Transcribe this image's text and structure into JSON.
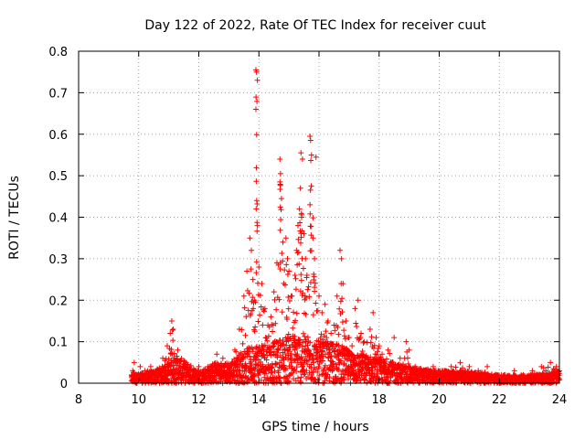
{
  "chart_data": {
    "type": "scatter",
    "title": "Day 122 of 2022, Rate Of TEC Index for receiver cuut",
    "xlabel": "GPS time / hours",
    "ylabel": "ROTI / TECUs",
    "xlim": [
      8,
      24
    ],
    "ylim": [
      0,
      0.8
    ],
    "xticks": [
      8,
      10,
      12,
      14,
      16,
      18,
      20,
      22,
      24
    ],
    "yticks": [
      0,
      0.1,
      0.2,
      0.3,
      0.4,
      0.5,
      0.6,
      0.7,
      0.8
    ],
    "xtick_labels": [
      "8",
      "10",
      "12",
      "14",
      "16",
      "18",
      "20",
      "22",
      "24"
    ],
    "ytick_labels": [
      "0",
      "0.1",
      "0.2",
      "0.3",
      "0.4",
      "0.5",
      "0.6",
      "0.7",
      "0.8"
    ],
    "grid": true,
    "marker": "+",
    "color": "#ff0000",
    "series": [
      {
        "points": [
          [
            9.8,
            0.03
          ],
          [
            9.85,
            0.05
          ],
          [
            9.95,
            0.02
          ],
          [
            10.05,
            0.04
          ],
          [
            10.2,
            0.03
          ],
          [
            10.4,
            0.04
          ],
          [
            10.6,
            0.03
          ],
          [
            10.8,
            0.06
          ],
          [
            10.95,
            0.09
          ],
          [
            11.05,
            0.12
          ],
          [
            11.1,
            0.15
          ],
          [
            11.15,
            0.13
          ],
          [
            11.3,
            0.08
          ],
          [
            11.5,
            0.04
          ],
          [
            11.8,
            0.03
          ],
          [
            12.0,
            0.04
          ],
          [
            12.3,
            0.03
          ],
          [
            12.6,
            0.07
          ],
          [
            12.8,
            0.06
          ],
          [
            13.0,
            0.04
          ],
          [
            13.2,
            0.08
          ],
          [
            13.35,
            0.13
          ],
          [
            13.5,
            0.21
          ],
          [
            13.6,
            0.27
          ],
          [
            13.7,
            0.35
          ],
          [
            13.75,
            0.32
          ],
          [
            13.8,
            0.25
          ],
          [
            13.85,
            0.2
          ],
          [
            13.9,
            0.755
          ],
          [
            13.92,
            0.75
          ],
          [
            13.95,
            0.73
          ],
          [
            13.9,
            0.66
          ],
          [
            13.95,
            0.38
          ],
          [
            14.0,
            0.28
          ],
          [
            14.1,
            0.24
          ],
          [
            14.2,
            0.18
          ],
          [
            14.3,
            0.14
          ],
          [
            14.4,
            0.16
          ],
          [
            14.5,
            0.22
          ],
          [
            14.6,
            0.29
          ],
          [
            14.7,
            0.54
          ],
          [
            14.72,
            0.505
          ],
          [
            14.7,
            0.485
          ],
          [
            14.75,
            0.445
          ],
          [
            14.8,
            0.34
          ],
          [
            14.9,
            0.35
          ],
          [
            14.95,
            0.3
          ],
          [
            15.0,
            0.27
          ],
          [
            15.1,
            0.21
          ],
          [
            15.2,
            0.26
          ],
          [
            15.25,
            0.32
          ],
          [
            15.3,
            0.38
          ],
          [
            15.35,
            0.42
          ],
          [
            15.4,
            0.555
          ],
          [
            15.45,
            0.54
          ],
          [
            15.38,
            0.47
          ],
          [
            15.42,
            0.4
          ],
          [
            15.5,
            0.36
          ],
          [
            15.55,
            0.3
          ],
          [
            15.6,
            0.26
          ],
          [
            15.7,
            0.595
          ],
          [
            15.72,
            0.585
          ],
          [
            15.75,
            0.55
          ],
          [
            15.7,
            0.43
          ],
          [
            15.9,
            0.545
          ],
          [
            15.8,
            0.35
          ],
          [
            15.85,
            0.3
          ],
          [
            16.0,
            0.21
          ],
          [
            16.1,
            0.17
          ],
          [
            16.2,
            0.19
          ],
          [
            16.3,
            0.15
          ],
          [
            16.4,
            0.12
          ],
          [
            16.5,
            0.14
          ],
          [
            16.6,
            0.21
          ],
          [
            16.7,
            0.32
          ],
          [
            16.75,
            0.3
          ],
          [
            16.8,
            0.24
          ],
          [
            16.9,
            0.15
          ],
          [
            17.0,
            0.11
          ],
          [
            17.1,
            0.09
          ],
          [
            17.2,
            0.18
          ],
          [
            17.3,
            0.2
          ],
          [
            17.4,
            0.12
          ],
          [
            17.5,
            0.1
          ],
          [
            17.7,
            0.13
          ],
          [
            17.8,
            0.17
          ],
          [
            17.9,
            0.11
          ],
          [
            18.0,
            0.09
          ],
          [
            18.1,
            0.07
          ],
          [
            18.3,
            0.08
          ],
          [
            18.5,
            0.11
          ],
          [
            18.7,
            0.06
          ],
          [
            18.9,
            0.1
          ],
          [
            19.0,
            0.08
          ],
          [
            19.2,
            0.04
          ],
          [
            19.5,
            0.03
          ],
          [
            19.8,
            0.04
          ],
          [
            20.1,
            0.03
          ],
          [
            20.4,
            0.04
          ],
          [
            20.7,
            0.05
          ],
          [
            21.0,
            0.04
          ],
          [
            21.3,
            0.03
          ],
          [
            21.6,
            0.04
          ],
          [
            21.9,
            0.02
          ],
          [
            22.2,
            0.02
          ],
          [
            22.5,
            0.03
          ],
          [
            22.8,
            0.02
          ],
          [
            23.1,
            0.03
          ],
          [
            23.4,
            0.04
          ],
          [
            23.7,
            0.05
          ],
          [
            23.9,
            0.04
          ],
          [
            24.0,
            0.03
          ]
        ]
      }
    ],
    "band": {
      "x_start": 9.75,
      "x_end": 24.0,
      "envelope": [
        [
          9.75,
          0.02
        ],
        [
          10.5,
          0.03
        ],
        [
          11.0,
          0.05
        ],
        [
          11.2,
          0.07
        ],
        [
          12.0,
          0.03
        ],
        [
          12.5,
          0.05
        ],
        [
          13.0,
          0.05
        ],
        [
          13.5,
          0.08
        ],
        [
          14.0,
          0.1
        ],
        [
          14.5,
          0.1
        ],
        [
          15.0,
          0.12
        ],
        [
          15.5,
          0.12
        ],
        [
          16.0,
          0.1
        ],
        [
          16.5,
          0.1
        ],
        [
          17.0,
          0.08
        ],
        [
          17.5,
          0.07
        ],
        [
          18.0,
          0.06
        ],
        [
          18.5,
          0.05
        ],
        [
          19.0,
          0.04
        ],
        [
          20.0,
          0.03
        ],
        [
          21.0,
          0.03
        ],
        [
          22.0,
          0.02
        ],
        [
          23.0,
          0.02
        ],
        [
          24.0,
          0.03
        ]
      ]
    }
  }
}
